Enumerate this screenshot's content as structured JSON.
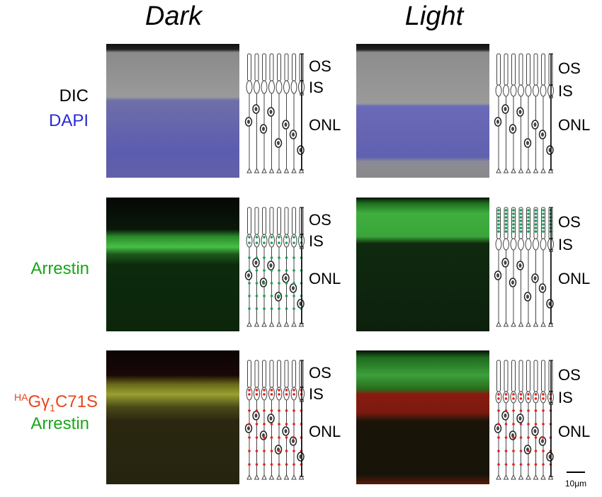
{
  "columns": [
    "Dark",
    "Light"
  ],
  "rows": [
    {
      "label": [
        "DIC",
        "DAPI"
      ],
      "panels": [
        {
          "layers": [
            "OS",
            "IS",
            "ONL"
          ]
        },
        {
          "layers": [
            "OS",
            "IS",
            "ONL"
          ]
        }
      ]
    },
    {
      "label": [
        "Arrestin"
      ],
      "panels": [
        {
          "layers": [
            "OS",
            "IS",
            "ONL"
          ]
        },
        {
          "layers": [
            "OS",
            "IS",
            "ONL"
          ]
        }
      ]
    },
    {
      "label": [
        [
          "HA",
          "G",
          "γ",
          "1",
          "C71S"
        ],
        "Arrestin"
      ],
      "panels": [
        {
          "layers": [
            "OS",
            "IS",
            "ONL"
          ]
        },
        {
          "layers": [
            "OS",
            "IS",
            "ONL"
          ]
        }
      ]
    }
  ],
  "scale_bar": "10μm"
}
